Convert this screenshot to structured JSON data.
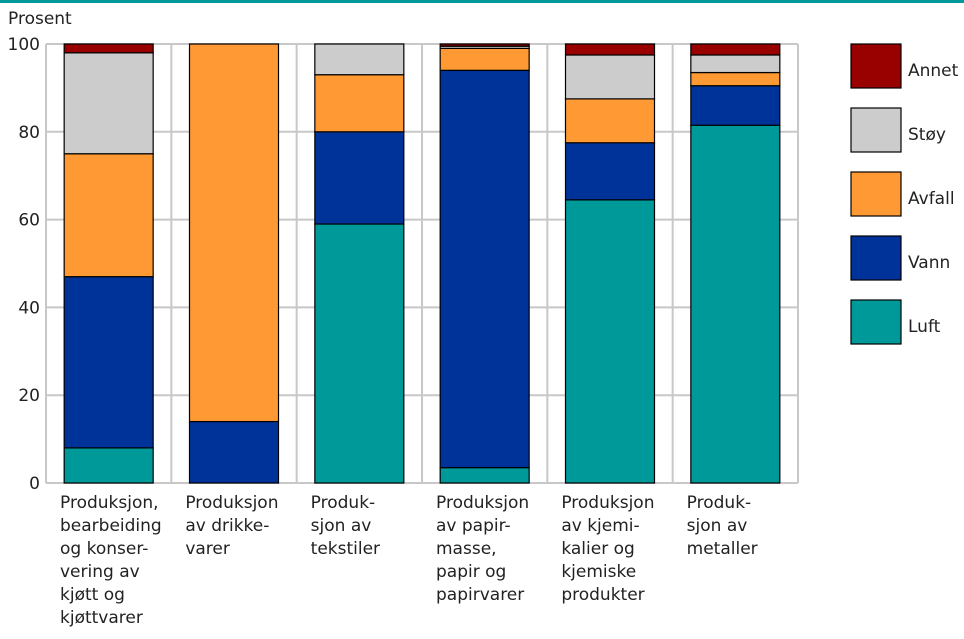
{
  "chart_data": {
    "type": "bar",
    "stacked": true,
    "ylabel": "Prosent",
    "ylim": [
      0,
      100
    ],
    "yticks": [
      0,
      20,
      40,
      60,
      80,
      100
    ],
    "grid": true,
    "legend_position": "right",
    "categories": [
      [
        "Produksjon,",
        "bearbeiding",
        "og konser-",
        "vering av",
        "kjøtt og",
        "kjøttvarer"
      ],
      [
        "Produksjon",
        "av drikke-",
        "varer"
      ],
      [
        "Produk-",
        "sjon av",
        "tekstiler"
      ],
      [
        "Produksjon",
        "av papir-",
        "masse,",
        "papir og",
        "papirvarer"
      ],
      [
        "Produksjon",
        "av kjemi-",
        "kalier og",
        "kjemiske",
        "produkter"
      ],
      [
        "Produk-",
        "sjon av",
        "metaller"
      ]
    ],
    "series": [
      {
        "name": "Luft",
        "color": "#009999",
        "values": [
          8,
          0,
          59,
          3.5,
          64.5,
          81.5
        ]
      },
      {
        "name": "Vann",
        "color": "#003399",
        "values": [
          39,
          14,
          21,
          90.5,
          13,
          9
        ]
      },
      {
        "name": "Avfall",
        "color": "#FF9933",
        "values": [
          28,
          86,
          13,
          5,
          10,
          3
        ]
      },
      {
        "name": "Støy",
        "color": "#CCCCCC",
        "values": [
          23,
          0,
          7,
          0.5,
          10,
          4
        ]
      },
      {
        "name": "Annet",
        "color": "#990000",
        "values": [
          2,
          0,
          0,
          0.5,
          2.5,
          2.5
        ]
      }
    ],
    "legend_order": [
      "Annet",
      "Støy",
      "Avfall",
      "Vann",
      "Luft"
    ],
    "accent_color": "#009999"
  }
}
